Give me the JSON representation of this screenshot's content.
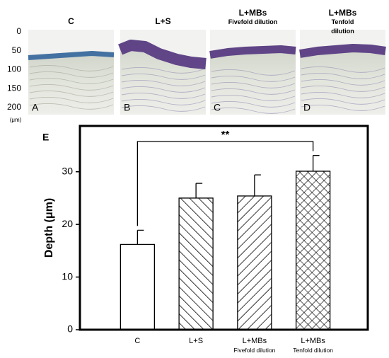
{
  "panels": [
    {
      "title": "C",
      "letter": "A"
    },
    {
      "title": "L+S",
      "letter": "B"
    },
    {
      "title": "L+MBs\nFivefold dilution",
      "letter": "C"
    },
    {
      "title": "L+MBs\nTenfold dilution",
      "letter": "D"
    }
  ],
  "scale": {
    "ticks": [
      0,
      50,
      100,
      150,
      200
    ],
    "unit": "(μm)"
  },
  "chart_data": {
    "type": "bar",
    "panel_label": "E",
    "y_label": "Depth (μm)",
    "categories": [
      "C",
      "L+S",
      "L+MBs\nFivefold dilution",
      "L+MBs\nTenfold dilution"
    ],
    "values": [
      16.2,
      25,
      25.4,
      30.1
    ],
    "errors": [
      2.7,
      2.8,
      4,
      3
    ],
    "hatches": [
      "none",
      "backslash",
      "slash",
      "cross"
    ],
    "color": "#ffffff",
    "edge_color": "#000000",
    "annotation": "**",
    "ylim": [
      0,
      38.7
    ],
    "yticks": [
      0,
      10,
      20,
      30
    ],
    "grid": false
  }
}
